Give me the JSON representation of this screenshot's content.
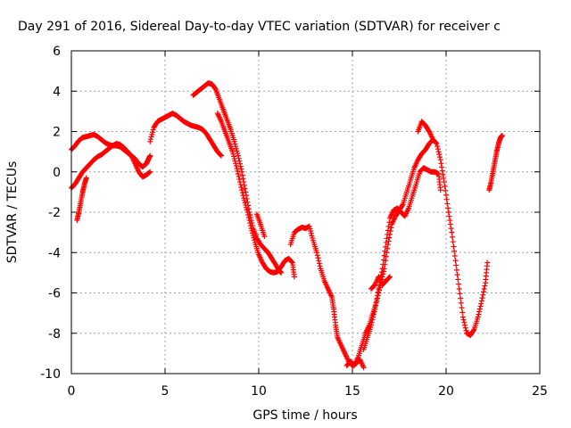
{
  "chart_data": {
    "type": "scatter",
    "title": "Day 291 of 2016, Sidereal Day-to-day VTEC variation (SDTVAR) for receiver c",
    "xlabel": "GPS time / hours",
    "ylabel": "SDTVAR / TECUs",
    "xlim": [
      0,
      25
    ],
    "ylim": [
      -10,
      6
    ],
    "xticks": [
      0,
      5,
      10,
      15,
      20,
      25
    ],
    "yticks": [
      -10,
      -8,
      -6,
      -4,
      -2,
      0,
      2,
      4,
      6
    ],
    "grid": true,
    "marker": "plus",
    "color": "#ff0000",
    "series": [
      {
        "values": [
          [
            0.0,
            1.1
          ],
          [
            0.2,
            1.3
          ],
          [
            0.4,
            1.55
          ],
          [
            0.6,
            1.7
          ],
          [
            0.8,
            1.75
          ],
          [
            1.0,
            1.8
          ],
          [
            1.2,
            1.85
          ],
          [
            1.4,
            1.75
          ],
          [
            1.6,
            1.6
          ],
          [
            1.8,
            1.45
          ],
          [
            2.0,
            1.35
          ],
          [
            2.2,
            1.3
          ],
          [
            2.4,
            1.3
          ],
          [
            2.6,
            1.25
          ],
          [
            2.8,
            1.1
          ],
          [
            3.0,
            0.95
          ],
          [
            3.2,
            0.8
          ],
          [
            3.4,
            0.65
          ],
          [
            3.6,
            0.4
          ],
          [
            3.8,
            0.25
          ],
          [
            4.0,
            0.4
          ],
          [
            4.1,
            0.6
          ],
          [
            4.2,
            0.8
          ]
        ]
      },
      {
        "values": [
          [
            0.0,
            -0.8
          ],
          [
            0.2,
            -0.6
          ],
          [
            0.4,
            -0.3
          ],
          [
            0.6,
            0.0
          ],
          [
            0.8,
            0.2
          ],
          [
            1.0,
            0.4
          ],
          [
            1.2,
            0.6
          ],
          [
            1.4,
            0.75
          ],
          [
            1.6,
            0.85
          ],
          [
            1.8,
            1.0
          ],
          [
            2.0,
            1.15
          ],
          [
            2.2,
            1.3
          ],
          [
            2.4,
            1.4
          ],
          [
            2.6,
            1.35
          ],
          [
            2.8,
            1.2
          ],
          [
            3.0,
            1.0
          ],
          [
            3.2,
            0.8
          ],
          [
            3.4,
            0.4
          ],
          [
            3.6,
            0.0
          ],
          [
            3.8,
            -0.25
          ],
          [
            4.0,
            -0.15
          ],
          [
            4.2,
            0.0
          ]
        ]
      },
      {
        "values": [
          [
            0.3,
            -2.4
          ],
          [
            0.4,
            -2.0
          ],
          [
            0.5,
            -1.5
          ],
          [
            0.6,
            -1.0
          ],
          [
            0.7,
            -0.6
          ],
          [
            0.8,
            -0.3
          ]
        ]
      },
      {
        "values": [
          [
            4.2,
            1.5
          ],
          [
            4.4,
            2.2
          ],
          [
            4.6,
            2.5
          ],
          [
            4.8,
            2.6
          ],
          [
            5.0,
            2.7
          ],
          [
            5.2,
            2.8
          ],
          [
            5.4,
            2.9
          ],
          [
            5.6,
            2.8
          ],
          [
            5.8,
            2.65
          ],
          [
            6.0,
            2.5
          ],
          [
            6.2,
            2.4
          ],
          [
            6.4,
            2.3
          ],
          [
            6.6,
            2.25
          ],
          [
            6.8,
            2.2
          ],
          [
            7.0,
            2.1
          ],
          [
            7.2,
            1.9
          ],
          [
            7.4,
            1.6
          ],
          [
            7.6,
            1.3
          ],
          [
            7.8,
            1.0
          ],
          [
            8.0,
            0.8
          ]
        ]
      },
      {
        "values": [
          [
            6.5,
            3.8
          ],
          [
            6.7,
            3.95
          ],
          [
            6.9,
            4.1
          ],
          [
            7.1,
            4.25
          ],
          [
            7.3,
            4.4
          ],
          [
            7.5,
            4.35
          ],
          [
            7.7,
            4.1
          ],
          [
            7.9,
            3.6
          ],
          [
            8.1,
            3.1
          ],
          [
            8.3,
            2.6
          ],
          [
            8.5,
            2.1
          ],
          [
            8.7,
            1.5
          ],
          [
            8.9,
            0.8
          ],
          [
            9.1,
            0.0
          ],
          [
            9.3,
            -1.0
          ],
          [
            9.5,
            -2.0
          ],
          [
            9.7,
            -2.8
          ],
          [
            9.9,
            -3.3
          ],
          [
            10.1,
            -3.6
          ],
          [
            10.3,
            -3.8
          ],
          [
            10.5,
            -4.0
          ],
          [
            10.7,
            -4.3
          ],
          [
            10.9,
            -4.6
          ],
          [
            11.1,
            -4.9
          ],
          [
            11.2,
            -5.0
          ]
        ]
      },
      {
        "values": [
          [
            7.8,
            2.9
          ],
          [
            8.0,
            2.5
          ],
          [
            8.2,
            2.0
          ],
          [
            8.4,
            1.5
          ],
          [
            8.6,
            1.0
          ],
          [
            8.8,
            0.3
          ],
          [
            9.0,
            -0.5
          ],
          [
            9.2,
            -1.3
          ],
          [
            9.4,
            -2.0
          ],
          [
            9.6,
            -2.8
          ],
          [
            9.8,
            -3.5
          ],
          [
            10.0,
            -4.1
          ],
          [
            10.2,
            -4.5
          ],
          [
            10.4,
            -4.8
          ],
          [
            10.6,
            -4.95
          ],
          [
            10.8,
            -5.0
          ],
          [
            11.0,
            -4.95
          ],
          [
            11.2,
            -4.7
          ],
          [
            11.4,
            -4.4
          ],
          [
            11.6,
            -4.3
          ],
          [
            11.8,
            -4.5
          ],
          [
            11.9,
            -5.2
          ]
        ]
      },
      {
        "values": [
          [
            9.9,
            -2.1
          ],
          [
            10.1,
            -2.6
          ],
          [
            10.3,
            -3.2
          ]
        ]
      },
      {
        "values": [
          [
            11.7,
            -3.6
          ],
          [
            11.9,
            -3.0
          ],
          [
            12.1,
            -2.85
          ],
          [
            12.3,
            -2.75
          ],
          [
            12.5,
            -2.8
          ],
          [
            12.7,
            -2.7
          ],
          [
            12.9,
            -3.4
          ],
          [
            13.1,
            -4.0
          ],
          [
            13.3,
            -4.8
          ],
          [
            13.5,
            -5.4
          ],
          [
            13.7,
            -5.8
          ],
          [
            13.9,
            -6.2
          ],
          [
            14.0,
            -6.8
          ],
          [
            14.1,
            -7.6
          ],
          [
            14.2,
            -8.2
          ],
          [
            14.4,
            -8.6
          ],
          [
            14.6,
            -9.0
          ],
          [
            14.8,
            -9.4
          ],
          [
            15.0,
            -9.6
          ],
          [
            15.2,
            -9.5
          ],
          [
            15.4,
            -9.3
          ],
          [
            15.6,
            -9.7
          ]
        ]
      },
      {
        "values": [
          [
            14.7,
            -9.6
          ],
          [
            14.9,
            -9.4
          ],
          [
            15.1,
            -9.6
          ],
          [
            15.3,
            -9.2
          ],
          [
            15.5,
            -8.6
          ],
          [
            15.7,
            -8.0
          ],
          [
            15.9,
            -7.6
          ],
          [
            16.1,
            -7.0
          ],
          [
            16.3,
            -6.4
          ],
          [
            16.5,
            -5.6
          ],
          [
            16.7,
            -4.8
          ],
          [
            16.9,
            -3.6
          ],
          [
            17.1,
            -2.6
          ],
          [
            17.3,
            -2.2
          ],
          [
            17.5,
            -1.9
          ],
          [
            17.7,
            -1.6
          ],
          [
            17.9,
            -1.0
          ],
          [
            18.1,
            -0.4
          ],
          [
            18.3,
            0.2
          ],
          [
            18.5,
            0.6
          ],
          [
            18.7,
            0.9
          ],
          [
            18.9,
            1.1
          ],
          [
            19.1,
            1.4
          ],
          [
            19.3,
            1.6
          ],
          [
            19.5,
            1.4
          ],
          [
            19.7,
            0.6
          ],
          [
            19.9,
            -0.5
          ],
          [
            20.1,
            -1.8
          ],
          [
            20.3,
            -3.0
          ],
          [
            20.5,
            -4.4
          ],
          [
            20.7,
            -5.8
          ],
          [
            20.9,
            -7.2
          ],
          [
            21.1,
            -8.0
          ],
          [
            21.3,
            -8.1
          ],
          [
            21.5,
            -7.8
          ],
          [
            21.7,
            -7.2
          ],
          [
            21.9,
            -6.4
          ],
          [
            22.1,
            -5.5
          ],
          [
            22.2,
            -4.5
          ]
        ]
      },
      {
        "values": [
          [
            15.6,
            -8.8
          ],
          [
            15.8,
            -8.2
          ],
          [
            16.0,
            -7.6
          ],
          [
            16.2,
            -6.8
          ],
          [
            16.4,
            -5.8
          ],
          [
            16.6,
            -4.8
          ],
          [
            16.8,
            -3.5
          ],
          [
            17.0,
            -2.3
          ],
          [
            17.2,
            -1.9
          ],
          [
            17.4,
            -1.8
          ],
          [
            17.6,
            -2.0
          ],
          [
            17.8,
            -2.2
          ],
          [
            18.0,
            -1.8
          ],
          [
            18.2,
            -1.2
          ],
          [
            18.4,
            -0.6
          ],
          [
            18.6,
            0.0
          ],
          [
            18.8,
            0.2
          ],
          [
            19.0,
            0.1
          ],
          [
            19.2,
            0.0
          ],
          [
            19.4,
            0.0
          ],
          [
            19.6,
            -0.1
          ],
          [
            19.7,
            -0.9
          ]
        ]
      },
      {
        "values": [
          [
            16.0,
            -5.8
          ],
          [
            16.2,
            -5.6
          ],
          [
            16.4,
            -5.2
          ],
          [
            16.6,
            -5.6
          ],
          [
            16.8,
            -5.4
          ],
          [
            17.0,
            -5.2
          ]
        ]
      },
      {
        "values": [
          [
            18.5,
            2.0
          ],
          [
            18.7,
            2.5
          ],
          [
            18.9,
            2.3
          ],
          [
            19.1,
            2.0
          ],
          [
            19.3,
            1.6
          ]
        ]
      },
      {
        "values": [
          [
            22.3,
            -0.9
          ],
          [
            22.4,
            -0.5
          ],
          [
            22.5,
            0.0
          ],
          [
            22.6,
            0.5
          ],
          [
            22.7,
            1.0
          ],
          [
            22.8,
            1.4
          ],
          [
            22.9,
            1.7
          ],
          [
            23.0,
            1.8
          ]
        ]
      }
    ]
  }
}
